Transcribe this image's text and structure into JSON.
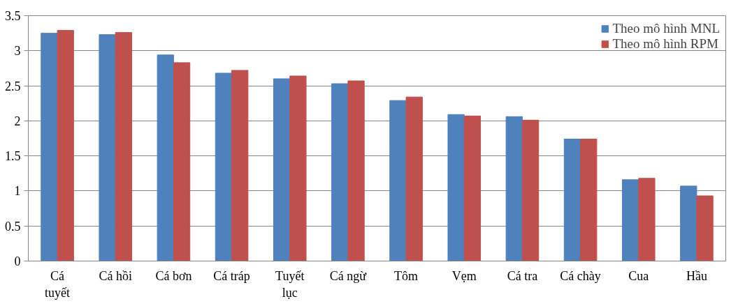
{
  "chart_data": {
    "type": "bar",
    "categories": [
      "Cá tuyết",
      "Cá hồi",
      "Cá bơn",
      "Cá tráp",
      "Tuyết lục",
      "Cá ngừ",
      "Tôm",
      "Vẹm",
      "Cá tra",
      "Cá chày",
      "Cua",
      "Hầu"
    ],
    "series": [
      {
        "name": "Theo mô hình MNL",
        "color": "#4f81bd",
        "values": [
          3.25,
          3.23,
          2.94,
          2.68,
          2.6,
          2.53,
          2.29,
          2.09,
          2.06,
          1.74,
          1.16,
          1.07
        ]
      },
      {
        "name": "Theo mô hình RPM",
        "color": "#c0504d",
        "values": [
          3.29,
          3.26,
          2.83,
          2.72,
          2.64,
          2.57,
          2.34,
          2.07,
          2.01,
          1.74,
          1.18,
          0.93
        ]
      }
    ],
    "ylim": [
      0,
      3.5
    ],
    "yticks": [
      0,
      0.5,
      1,
      1.5,
      2,
      2.5,
      3,
      3.5
    ],
    "grid": "y",
    "legend": "top right"
  }
}
